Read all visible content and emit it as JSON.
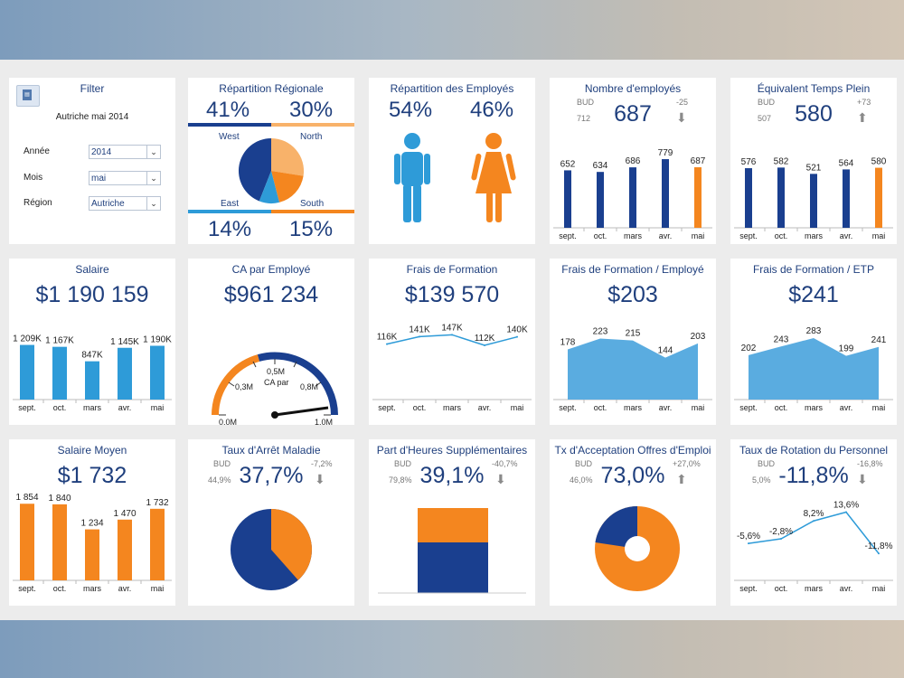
{
  "filter": {
    "title": "Filter",
    "subtitle": "Autriche mai 2014",
    "annee_label": "Année",
    "annee_value": "2014",
    "mois_label": "Mois",
    "mois_value": "mai",
    "region_label": "Région",
    "region_value": "Autriche"
  },
  "regional": {
    "title": "Répartition Régionale",
    "west_pct": "41%",
    "north_pct": "30%",
    "east_pct": "14%",
    "south_pct": "15%",
    "west": "West",
    "north": "North",
    "east": "East",
    "south": "South"
  },
  "employees_split": {
    "title": "Répartition des Employés",
    "male_pct": "54%",
    "female_pct": "46%"
  },
  "months": [
    "sept.",
    "oct.",
    "mars",
    "avr.",
    "mai"
  ],
  "nb_employes": {
    "title": "Nombre d'employés",
    "value": "687",
    "bud_label": "BUD",
    "bud_value": "712",
    "delta": "-25"
  },
  "etp": {
    "title": "Équivalent Temps Plein",
    "value": "580",
    "bud_label": "BUD",
    "bud_value": "507",
    "delta": "+73"
  },
  "salaire": {
    "title": "Salaire",
    "value": "$1 190 159"
  },
  "ca": {
    "title": "CA par Employé",
    "value": "$961 234",
    "gauge_title": "CA par",
    "ticks": [
      "0,0M",
      "0,3M",
      "0,5M",
      "0,8M",
      "1,0M"
    ]
  },
  "frais": {
    "title": "Frais de Formation",
    "value": "$139 570"
  },
  "frais_emp": {
    "title": "Frais de Formation / Employé",
    "value": "$203"
  },
  "frais_etp": {
    "title": "Frais de Formation / ETP",
    "value": "$241"
  },
  "sal_moyen": {
    "title": "Salaire Moyen",
    "value": "$1 732"
  },
  "maladie": {
    "title": "Taux d'Arrêt Maladie",
    "value": "37,7%",
    "bud_label": "BUD",
    "bud_value": "44,9%",
    "delta": "-7,2%"
  },
  "heures": {
    "title": "Part d'Heures Supplémentaires",
    "value": "39,1%",
    "bud_label": "BUD",
    "bud_value": "79,8%",
    "delta": "-40,7%"
  },
  "acceptation": {
    "title": "Tx d'Acceptation Offres d'Emploi",
    "value": "73,0%",
    "bud_label": "BUD",
    "bud_value": "46,0%",
    "delta": "+27,0%"
  },
  "rotation": {
    "title": "Taux de Rotation du Personnel",
    "value": "-11,8%",
    "bud_label": "BUD",
    "bud_value": "5,0%",
    "delta": "-16,8%"
  },
  "colors": {
    "navy": "#1a3f8f",
    "orange": "#f4861f",
    "lightblue": "#2e9bd8",
    "areablue": "#5aace0"
  },
  "chart_data": [
    {
      "type": "bar",
      "title": "Nombre d'employés",
      "categories": [
        "sept.",
        "oct.",
        "mars",
        "avr.",
        "mai"
      ],
      "values": [
        652,
        634,
        686,
        779,
        687
      ],
      "data_labels": [
        "652",
        "634",
        "686",
        "779",
        "687"
      ]
    },
    {
      "type": "bar",
      "title": "Équivalent Temps Plein",
      "categories": [
        "sept.",
        "oct.",
        "mars",
        "avr.",
        "mai"
      ],
      "values": [
        576,
        582,
        521,
        564,
        580
      ],
      "data_labels": [
        "576",
        "582",
        "521",
        "564",
        "580"
      ]
    },
    {
      "type": "bar",
      "title": "Salaire",
      "categories": [
        "sept.",
        "oct.",
        "mars",
        "avr.",
        "mai"
      ],
      "values": [
        1209,
        1167,
        847,
        1145,
        1190
      ],
      "data_labels": [
        "1 209K",
        "1 167K",
        "847K",
        "1 145K",
        "1 190K"
      ]
    },
    {
      "type": "line",
      "title": "Frais de Formation",
      "categories": [
        "sept.",
        "oct.",
        "mars",
        "avr.",
        "mai"
      ],
      "values": [
        116,
        141,
        147,
        112,
        140
      ],
      "data_labels": [
        "116K",
        "141K",
        "147K",
        "112K",
        "140K"
      ]
    },
    {
      "type": "area",
      "title": "Frais de Formation / Employé",
      "categories": [
        "sept.",
        "oct.",
        "mars",
        "avr.",
        "mai"
      ],
      "values": [
        178,
        223,
        215,
        144,
        203
      ],
      "data_labels": [
        "178",
        "223",
        "215",
        "144",
        "203"
      ]
    },
    {
      "type": "area",
      "title": "Frais de Formation / ETP",
      "categories": [
        "sept.",
        "oct.",
        "mars",
        "avr.",
        "mai"
      ],
      "values": [
        202,
        243,
        283,
        199,
        241
      ],
      "data_labels": [
        "202",
        "243",
        "283",
        "199",
        "241"
      ]
    },
    {
      "type": "bar",
      "title": "Salaire Moyen",
      "categories": [
        "sept.",
        "oct.",
        "mars",
        "avr.",
        "mai"
      ],
      "values": [
        1854,
        1840,
        1234,
        1470,
        1732
      ],
      "data_labels": [
        "1 854",
        "1 840",
        "1 234",
        "1 470",
        "1 732"
      ]
    },
    {
      "type": "line",
      "title": "Taux de Rotation du Personnel",
      "categories": [
        "sept.",
        "oct.",
        "mars",
        "avr.",
        "mai"
      ],
      "values": [
        -5.6,
        -2.8,
        8.2,
        13.6,
        -11.8
      ],
      "data_labels": [
        "-5,6%",
        "-2,8%",
        "8,2%",
        "13,6%",
        "-11,8%"
      ]
    },
    {
      "type": "pie",
      "title": "Répartition Régionale",
      "categories": [
        "West",
        "North",
        "South",
        "East"
      ],
      "values": [
        41,
        30,
        15,
        14
      ]
    },
    {
      "type": "pie",
      "title": "Taux d'Arrêt Maladie",
      "values": [
        37.7,
        62.3
      ]
    },
    {
      "type": "bar",
      "title": "Part d'Heures Supplémentaires",
      "values": [
        39.1,
        60.9
      ]
    },
    {
      "type": "pie",
      "title": "Tx d'Acceptation Offres d'Emploi",
      "values": [
        73.0,
        27.0
      ]
    },
    {
      "type": "gauge",
      "title": "CA par Employé",
      "values": [
        0.96
      ],
      "ylim": [
        0,
        1.0
      ]
    }
  ]
}
